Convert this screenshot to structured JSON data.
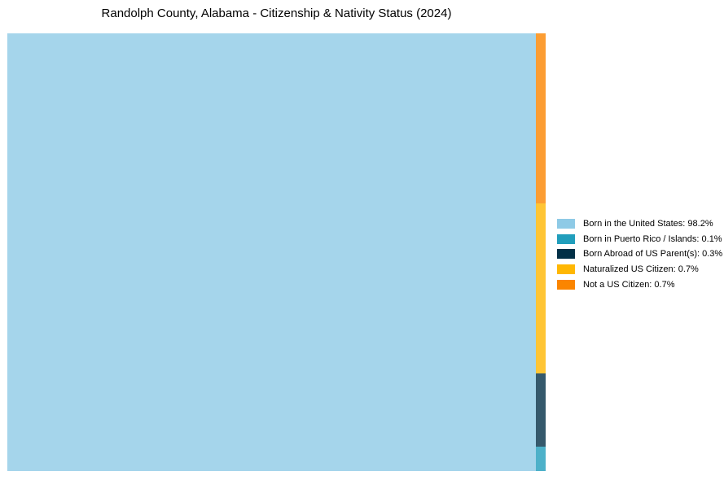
{
  "chart_data": {
    "type": "treemap",
    "title": "Randolph County, Alabama - Citizenship & Nativity Status (2024)",
    "categories": [
      "Born in the United States",
      "Born in Puerto Rico / Islands",
      "Born Abroad of US Parent(s)",
      "Naturalized US Citizen",
      "Not a US Citizen"
    ],
    "values": [
      98.2,
      0.1,
      0.3,
      0.7,
      0.7
    ],
    "unit": "%",
    "colors": [
      "#8ecae6",
      "#219ebc",
      "#023047",
      "#ffb703",
      "#fb8500"
    ],
    "rect_opacity": 0.8,
    "legend_position": "right",
    "layout": {
      "main_index": 0,
      "column_order_top_to_bottom": [
        4,
        3,
        2,
        1
      ]
    }
  },
  "legend": {
    "items": [
      {
        "label": "Born in the United States: 98.2%",
        "color": "#8ecae6"
      },
      {
        "label": "Born in Puerto Rico / Islands: 0.1%",
        "color": "#219ebc"
      },
      {
        "label": "Born Abroad of US Parent(s): 0.3%",
        "color": "#023047"
      },
      {
        "label": "Naturalized US Citizen: 0.7%",
        "color": "#ffb703"
      },
      {
        "label": "Not a US Citizen: 0.7%",
        "color": "#fb8500"
      }
    ]
  }
}
